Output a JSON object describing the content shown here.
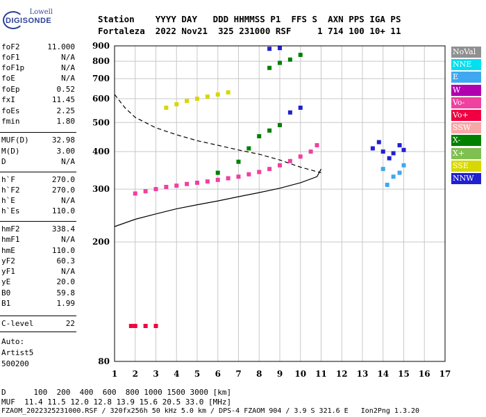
{
  "logo": {
    "line1": "Lowell",
    "line2": "DIGISONDE"
  },
  "header": {
    "line1": "Station    YYYY DAY   DDD HHMMSS P1  FFS S  AXN PPS IGA PS",
    "line2": "Fortaleza  2022 Nov21  325 231000 RSF     1 714 100 10+ 11"
  },
  "params": [
    {
      "name": "foF2",
      "value": "11.000"
    },
    {
      "name": "foF1",
      "value": "N/A"
    },
    {
      "name": "foF1p",
      "value": "N/A"
    },
    {
      "name": "foE",
      "value": "N/A"
    },
    {
      "name": "foEp",
      "value": "0.52"
    },
    {
      "name": "fxI",
      "value": "11.45"
    },
    {
      "name": "foEs",
      "value": "2.25"
    },
    {
      "name": "fmin",
      "value": "1.80"
    },
    {
      "name": "MUF(D)",
      "value": "32.98"
    },
    {
      "name": "M(D)",
      "value": "3.00"
    },
    {
      "name": "D",
      "value": "N/A"
    },
    {
      "name": "h`F",
      "value": "270.0"
    },
    {
      "name": "h`F2",
      "value": "270.0"
    },
    {
      "name": "h`E",
      "value": "N/A"
    },
    {
      "name": "h`Es",
      "value": "110.0"
    },
    {
      "name": "hmF2",
      "value": "338.4"
    },
    {
      "name": "hmF1",
      "value": "N/A"
    },
    {
      "name": "hmE",
      "value": "110.0"
    },
    {
      "name": "yF2",
      "value": "60.3"
    },
    {
      "name": "yF1",
      "value": "N/A"
    },
    {
      "name": "yE",
      "value": "20.0"
    },
    {
      "name": "B0",
      "value": "59.8"
    },
    {
      "name": "B1",
      "value": "1.99"
    },
    {
      "name": "C-level",
      "value": "22"
    }
  ],
  "auto": [
    "Auto:",
    "Artist5",
    "500200"
  ],
  "legend": [
    {
      "label": "NoVal",
      "color": "#909090"
    },
    {
      "label": "NNE",
      "color": "#00e0f0"
    },
    {
      "label": "E",
      "color": "#40a8f0"
    },
    {
      "label": "W",
      "color": "#b000b0"
    },
    {
      "label": "Vo-",
      "color": "#f040a0"
    },
    {
      "label": "Vo+",
      "color": "#f00040"
    },
    {
      "label": "SSW",
      "color": "#f8a8a8"
    },
    {
      "label": "X-",
      "color": "#008000"
    },
    {
      "label": "X+",
      "color": "#80c050"
    },
    {
      "label": "SSE",
      "color": "#d8d800"
    },
    {
      "label": "NNW",
      "color": "#2020d0"
    }
  ],
  "footer": {
    "line1": "D      100  200  400  600  800 1000 1500 3000 [km]",
    "line2": "MUF  11.4 11.5 12.0 12.8 13.9 15.6 20.5 33.0 [MHz]",
    "line3": "FZAOM_2022325231000.RSF / 320fx256h 50 kHz 5.0 km / DPS-4 FZAOM 904 / 3.9 S 321.6 E   Ion2Png 1.3.20"
  },
  "chart_data": {
    "type": "scatter",
    "xlabel": "",
    "ylabel": "",
    "xlim": [
      1,
      17
    ],
    "ylim": [
      80,
      900
    ],
    "x_ticks": [
      1,
      2,
      3,
      4,
      5,
      6,
      7,
      8,
      9,
      10,
      11,
      12,
      13,
      14,
      15,
      16,
      17
    ],
    "y_ticks": [
      80,
      200,
      300,
      400,
      500,
      600,
      700,
      800,
      900
    ],
    "y_scale": "log",
    "grid": true,
    "series": [
      {
        "name": "O-trace (Vo-)",
        "color": "#f040a0",
        "points": [
          [
            2.0,
            290
          ],
          [
            2.5,
            295
          ],
          [
            3.0,
            300
          ],
          [
            3.5,
            305
          ],
          [
            4.0,
            308
          ],
          [
            4.5,
            312
          ],
          [
            5.0,
            315
          ],
          [
            5.5,
            318
          ],
          [
            6.0,
            322
          ],
          [
            6.5,
            326
          ],
          [
            7.0,
            330
          ],
          [
            7.5,
            336
          ],
          [
            8.0,
            342
          ],
          [
            8.5,
            350
          ],
          [
            9.0,
            360
          ],
          [
            9.5,
            372
          ],
          [
            10.0,
            385
          ],
          [
            10.5,
            400
          ],
          [
            10.8,
            420
          ]
        ]
      },
      {
        "name": "X-trace (X-)",
        "color": "#008000",
        "points": [
          [
            6.0,
            340
          ],
          [
            7.0,
            370
          ],
          [
            7.5,
            410
          ],
          [
            8.0,
            450
          ],
          [
            8.5,
            470
          ],
          [
            9.0,
            490
          ],
          [
            8.5,
            760
          ],
          [
            9.0,
            790
          ],
          [
            9.5,
            810
          ],
          [
            10.0,
            840
          ]
        ]
      },
      {
        "name": "Es (NoVal)",
        "color": "#f00040",
        "points": [
          [
            1.8,
            105
          ],
          [
            2.0,
            105
          ],
          [
            2.5,
            105
          ],
          [
            3.0,
            105
          ]
        ]
      },
      {
        "name": "NNW spread",
        "color": "#2020d0",
        "points": [
          [
            13.5,
            410
          ],
          [
            14.0,
            400
          ],
          [
            14.5,
            395
          ],
          [
            15.0,
            405
          ],
          [
            13.8,
            430
          ],
          [
            14.3,
            380
          ],
          [
            14.8,
            420
          ],
          [
            8.5,
            880
          ],
          [
            9.0,
            885
          ],
          [
            9.5,
            540
          ],
          [
            10.0,
            560
          ]
        ]
      },
      {
        "name": "E spread",
        "color": "#40a8f0",
        "points": [
          [
            14.0,
            350
          ],
          [
            14.5,
            330
          ],
          [
            14.2,
            310
          ],
          [
            14.8,
            340
          ],
          [
            15.0,
            360
          ]
        ]
      },
      {
        "name": "SSE high",
        "color": "#d8d800",
        "points": [
          [
            3.5,
            560
          ],
          [
            4.0,
            575
          ],
          [
            4.5,
            590
          ],
          [
            5.0,
            600
          ],
          [
            5.5,
            610
          ],
          [
            6.0,
            620
          ],
          [
            6.5,
            630
          ]
        ]
      }
    ],
    "profile_solid": [
      [
        1.0,
        225
      ],
      [
        2.0,
        238
      ],
      [
        3.0,
        248
      ],
      [
        4.0,
        258
      ],
      [
        5.0,
        266
      ],
      [
        6.0,
        274
      ],
      [
        7.0,
        283
      ],
      [
        8.0,
        292
      ],
      [
        9.0,
        302
      ],
      [
        10.0,
        315
      ],
      [
        10.8,
        330
      ],
      [
        11.0,
        350
      ]
    ],
    "profile_dashed": [
      [
        1.0,
        620
      ],
      [
        1.5,
        560
      ],
      [
        2.0,
        520
      ],
      [
        3.0,
        480
      ],
      [
        4.0,
        455
      ],
      [
        5.0,
        435
      ],
      [
        6.0,
        420
      ],
      [
        7.0,
        405
      ],
      [
        8.0,
        392
      ],
      [
        9.0,
        375
      ],
      [
        10.0,
        355
      ],
      [
        11.0,
        340
      ]
    ]
  }
}
